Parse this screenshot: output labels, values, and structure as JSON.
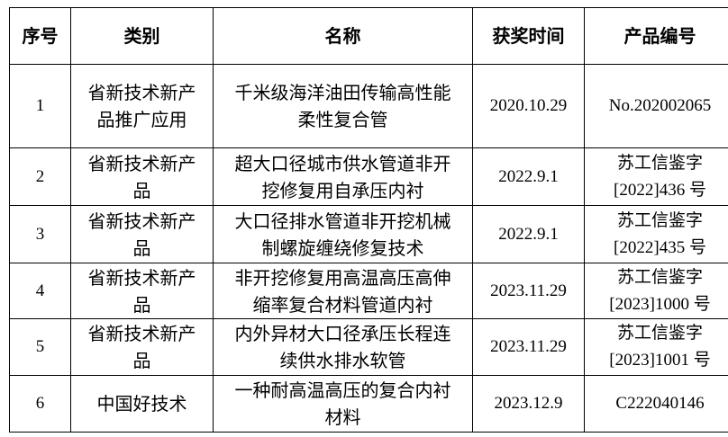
{
  "headers": [
    "序号",
    "类别",
    "名称",
    "获奖时间",
    "产品编号"
  ],
  "rows": [
    {
      "no": "1",
      "category": "省新技术新产品推广应用",
      "name": "千米级海洋油田传输高性能柔性复合管",
      "date": "2020.10.29",
      "code": "No.202002065"
    },
    {
      "no": "2",
      "category": "省新技术新产品",
      "name": "超大口径城市供水管道非开挖修复用自承压内衬",
      "date": "2022.9.1",
      "code": "苏工信鉴字[2022]436 号"
    },
    {
      "no": "3",
      "category": "省新技术新产品",
      "name": "大口径排水管道非开挖机械制螺旋缠绕修复技术",
      "date": "2022.9.1",
      "code": "苏工信鉴字[2022]435 号"
    },
    {
      "no": "4",
      "category": "省新技术新产品",
      "name": "非开挖修复用高温高压高伸缩率复合材料管道内衬",
      "date": "2023.11.29",
      "code": "苏工信鉴字[2023]1000 号"
    },
    {
      "no": "5",
      "category": "省新技术新产品",
      "name": "内外异材大口径承压长程连续供水排水软管",
      "date": "2023.11.29",
      "code": "苏工信鉴字[2023]1001 号"
    },
    {
      "no": "6",
      "category": "中国好技术",
      "name": "一种耐高温高压的复合内衬材料",
      "date": "2023.12.9",
      "code": "C222040146"
    }
  ]
}
